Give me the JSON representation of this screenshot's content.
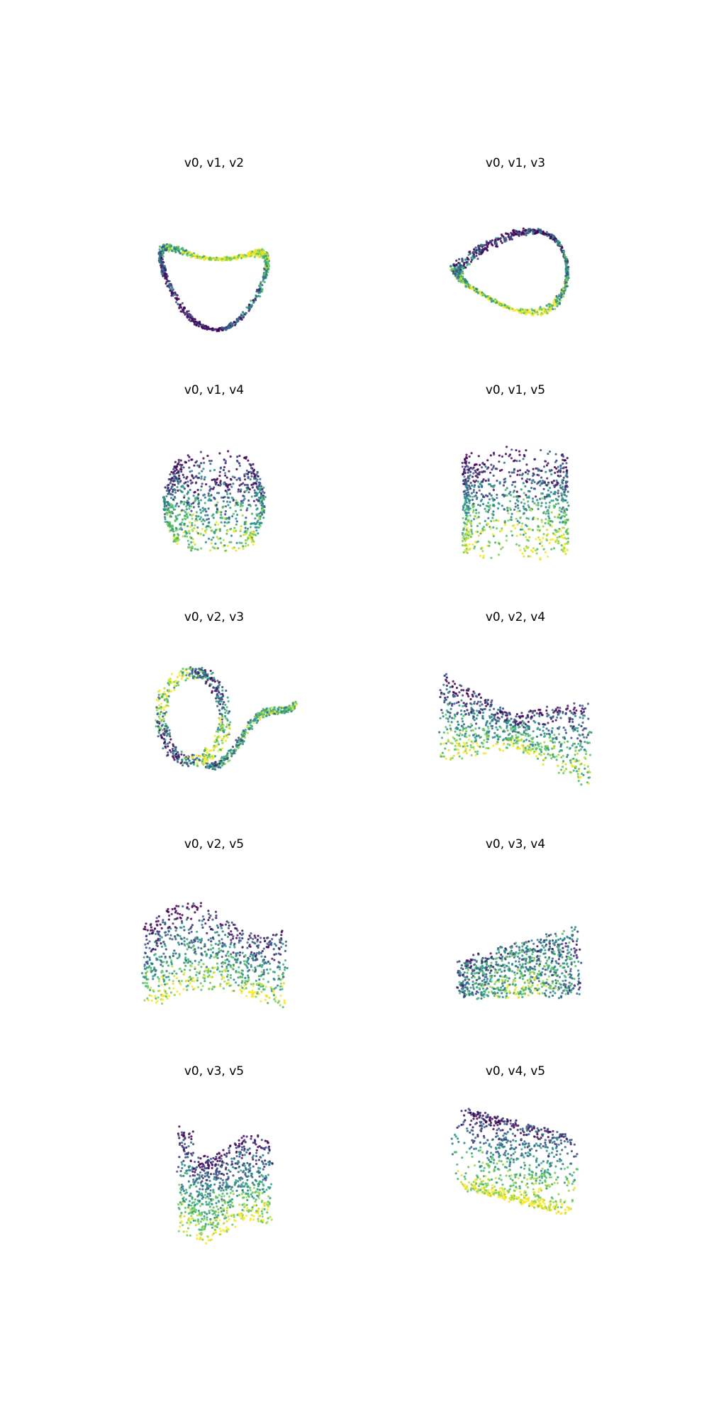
{
  "figure": {
    "colormap": "viridis",
    "colormap_stops": [
      "#440154",
      "#3b528b",
      "#21918c",
      "#5ec962",
      "#fde725"
    ]
  },
  "chart_data": [
    {
      "type": "scatter",
      "projection": "3d",
      "title": "v0, v1, v2",
      "axes": [
        "v0",
        "v1",
        "v2"
      ],
      "axis_visible": false,
      "grid": false,
      "shape": "ring"
    },
    {
      "type": "scatter",
      "projection": "3d",
      "title": "v0, v1, v3",
      "axes": [
        "v0",
        "v1",
        "v3"
      ],
      "axis_visible": false,
      "grid": false,
      "shape": "twisted-ring"
    },
    {
      "type": "scatter",
      "projection": "3d",
      "title": "v0, v1, v4",
      "axes": [
        "v0",
        "v1",
        "v4"
      ],
      "axis_visible": false,
      "grid": false,
      "shape": "bowl"
    },
    {
      "type": "scatter",
      "projection": "3d",
      "title": "v0, v1, v5",
      "axes": [
        "v0",
        "v1",
        "v5"
      ],
      "axis_visible": false,
      "grid": false,
      "shape": "cylinder"
    },
    {
      "type": "scatter",
      "projection": "3d",
      "title": "v0, v2, v3",
      "axes": [
        "v0",
        "v2",
        "v3"
      ],
      "axis_visible": false,
      "grid": false,
      "shape": "loop-tail"
    },
    {
      "type": "scatter",
      "projection": "3d",
      "title": "v0, v2, v4",
      "axes": [
        "v0",
        "v2",
        "v4"
      ],
      "axis_visible": false,
      "grid": false,
      "shape": "bowtie"
    },
    {
      "type": "scatter",
      "projection": "3d",
      "title": "v0, v2, v5",
      "axes": [
        "v0",
        "v2",
        "v5"
      ],
      "axis_visible": false,
      "grid": false,
      "shape": "double-arch"
    },
    {
      "type": "scatter",
      "projection": "3d",
      "title": "v0, v3, v4",
      "axes": [
        "v0",
        "v3",
        "v4"
      ],
      "axis_visible": false,
      "grid": false,
      "shape": "saddle"
    },
    {
      "type": "scatter",
      "projection": "3d",
      "title": "v0, v3, v5",
      "axes": [
        "v0",
        "v3",
        "v5"
      ],
      "axis_visible": false,
      "grid": false,
      "shape": "curled-sheet"
    },
    {
      "type": "scatter",
      "projection": "3d",
      "title": "v0, v4, v5",
      "axes": [
        "v0",
        "v4",
        "v5"
      ],
      "axis_visible": false,
      "grid": false,
      "shape": "tilted-cylinder"
    }
  ]
}
